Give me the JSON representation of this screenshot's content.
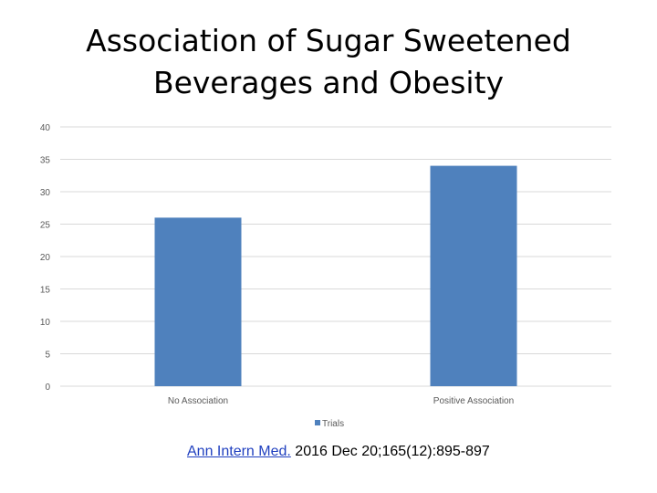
{
  "chart_data": {
    "type": "bar",
    "title_lines": [
      "Association of Sugar Sweetened",
      "Beverages and Obesity"
    ],
    "categories": [
      "No Association",
      "Positive Association"
    ],
    "series": [
      {
        "name": "Trials",
        "values": [
          26,
          34
        ],
        "color": "#4f81bd"
      }
    ],
    "ylim": [
      0,
      40
    ],
    "yticks": [
      0,
      5,
      10,
      15,
      20,
      25,
      30,
      35,
      40
    ],
    "grid": true,
    "legend_position": "bottom",
    "gridline_color": "#d9d9d9",
    "tick_label_color": "#595959"
  },
  "citation": {
    "link_text": "Ann Intern Med.",
    "details": "2016 Dec 20;165(12):895-897",
    "link_color": "#1f3fbf"
  }
}
